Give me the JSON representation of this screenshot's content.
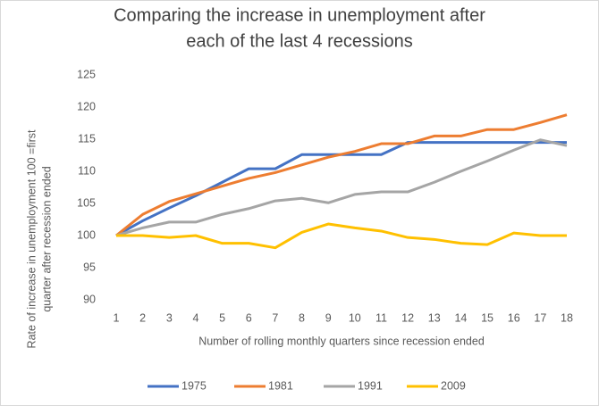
{
  "chart_data": {
    "type": "line",
    "title": [
      "Comparing the increase in unemployment after",
      "each of the last 4 recessions"
    ],
    "xlabel": "Number  of rolling monthly quarters since recession ended",
    "ylabel": [
      "Rate of increase in unemployment 100 =first",
      "quarter after recession ended"
    ],
    "x": [
      1,
      2,
      3,
      4,
      5,
      6,
      7,
      8,
      9,
      10,
      11,
      12,
      13,
      14,
      15,
      16,
      17,
      18
    ],
    "xlim": [
      1,
      18
    ],
    "xticks": [
      1,
      2,
      3,
      4,
      5,
      6,
      7,
      8,
      9,
      10,
      11,
      12,
      13,
      14,
      15,
      16,
      17,
      18
    ],
    "ylim": [
      90,
      125
    ],
    "yticks": [
      90,
      95,
      100,
      105,
      110,
      115,
      120,
      125
    ],
    "grid": false,
    "legend": "bottom",
    "series": [
      {
        "name": "1975",
        "color": "#4472c4",
        "values": [
          100,
          102.3,
          104.3,
          106.2,
          108.3,
          110.4,
          110.4,
          112.6,
          112.6,
          112.6,
          112.6,
          114.5,
          114.5,
          114.5,
          114.5,
          114.5,
          114.5,
          114.5
        ]
      },
      {
        "name": "1981",
        "color": "#ed7d31",
        "values": [
          100,
          103.3,
          105.3,
          106.5,
          107.7,
          108.9,
          109.8,
          111,
          112.2,
          113.1,
          114.3,
          114.3,
          115.5,
          115.5,
          116.5,
          116.5,
          117.6,
          118.8
        ]
      },
      {
        "name": "1991",
        "color": "#a5a5a5",
        "values": [
          100,
          101.2,
          102.1,
          102.1,
          103.3,
          104.2,
          105.4,
          105.8,
          105.1,
          106.4,
          106.8,
          106.8,
          108.3,
          110,
          111.6,
          113.3,
          114.9,
          114
        ]
      },
      {
        "name": "2009",
        "color": "#ffc000",
        "values": [
          100,
          100,
          99.7,
          100,
          98.8,
          98.8,
          98.1,
          100.5,
          101.8,
          101.2,
          100.7,
          99.7,
          99.4,
          98.8,
          98.6,
          100.4,
          100,
          100
        ]
      }
    ]
  }
}
